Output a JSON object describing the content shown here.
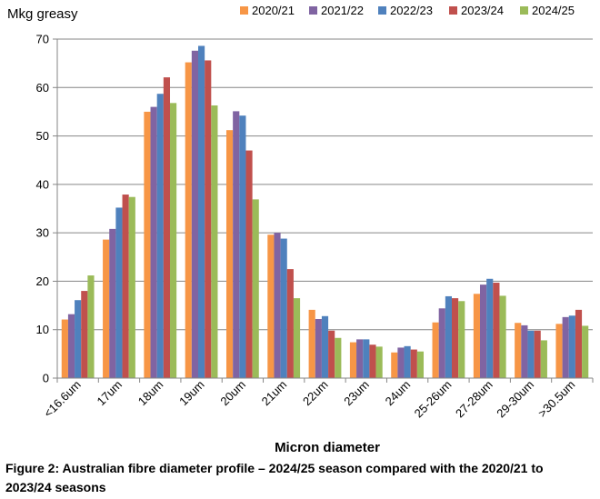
{
  "chart_data": {
    "type": "bar",
    "ylabel": "Mkg greasy",
    "xlabel": "Micron diameter",
    "ylim": [
      0,
      70
    ],
    "yticks": [
      0,
      10,
      20,
      30,
      40,
      50,
      60,
      70
    ],
    "grid": true,
    "legend_position": "top-right",
    "categories": [
      "<16.6um",
      "17um",
      "18um",
      "19um",
      "20um",
      "21um",
      "22um",
      "23um",
      "24um",
      "25-26um",
      "27-28um",
      "29-30um",
      ">30.5um"
    ],
    "series": [
      {
        "name": "2020/21",
        "color": "#F79646",
        "values": [
          12.1,
          28.6,
          55.0,
          65.2,
          51.2,
          29.6,
          14.1,
          7.4,
          5.3,
          11.5,
          17.4,
          11.4,
          11.2
        ]
      },
      {
        "name": "2021/22",
        "color": "#8064A2",
        "values": [
          13.2,
          30.8,
          56.0,
          67.6,
          55.1,
          30.0,
          12.2,
          8.0,
          6.3,
          14.4,
          19.3,
          10.9,
          12.6
        ]
      },
      {
        "name": "2022/23",
        "color": "#4F81BD",
        "values": [
          16.1,
          35.2,
          58.7,
          68.6,
          54.2,
          28.8,
          12.8,
          8.0,
          6.6,
          16.9,
          20.5,
          9.8,
          12.9
        ]
      },
      {
        "name": "2023/24",
        "color": "#C0504D",
        "values": [
          18.0,
          37.9,
          62.1,
          65.6,
          47.0,
          22.5,
          9.8,
          6.9,
          5.9,
          16.5,
          19.7,
          9.8,
          14.1
        ]
      },
      {
        "name": "2024/25",
        "color": "#9BBB59",
        "values": [
          21.2,
          37.4,
          56.8,
          56.3,
          36.9,
          16.5,
          8.3,
          6.5,
          5.5,
          15.9,
          17.0,
          7.8,
          10.8
        ]
      }
    ]
  },
  "caption": "Figure 2: Australian fibre diameter profile – 2024/25 season compared with the 2020/21 to 2023/24 seasons"
}
